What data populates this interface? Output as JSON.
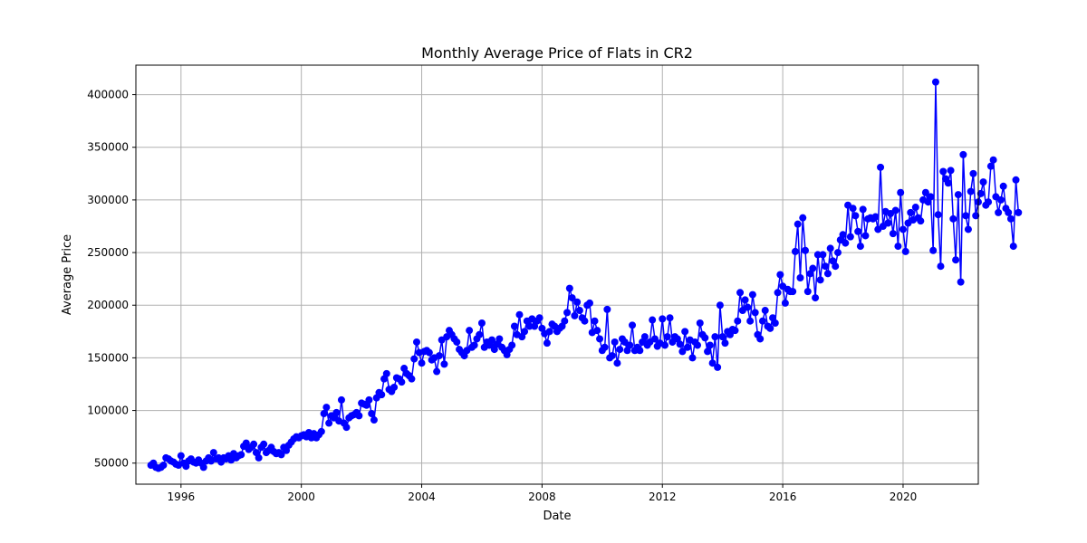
{
  "chart_data": {
    "type": "line",
    "title": "Monthly Average Price of Flats in CR2",
    "xlabel": "Date",
    "ylabel": "Average Price",
    "x_ticks": [
      "1996",
      "2000",
      "2004",
      "2008",
      "2012",
      "2016",
      "2020"
    ],
    "y_ticks": [
      "50000",
      "100000",
      "150000",
      "200000",
      "250000",
      "300000",
      "350000",
      "400000"
    ],
    "xlim": [
      "1994-07",
      "2022-07"
    ],
    "ylim": [
      30000,
      428000
    ],
    "grid": true,
    "series_color": "#0000ff",
    "marker": "circle",
    "series": [
      {
        "x_start": "1995-01",
        "x_step": "1 month",
        "values": [
          48000,
          50000,
          46000,
          45000,
          46000,
          48000,
          55000,
          54000,
          52000,
          51000,
          49000,
          48000,
          57000,
          50000,
          47000,
          52000,
          54000,
          51000,
          50000,
          53000,
          50000,
          46000,
          52000,
          55000,
          52000,
          60000,
          54000,
          55000,
          51000,
          55000,
          54000,
          57000,
          53000,
          59000,
          55000,
          57000,
          58000,
          66000,
          69000,
          63000,
          65000,
          68000,
          60000,
          55000,
          65000,
          68000,
          60000,
          62000,
          65000,
          61000,
          59000,
          60000,
          58000,
          65000,
          62000,
          67000,
          70000,
          73000,
          75000,
          74000,
          76000,
          77000,
          75000,
          79000,
          74000,
          78000,
          74000,
          77000,
          80000,
          97000,
          103000,
          88000,
          95000,
          93000,
          98000,
          90000,
          110000,
          88000,
          84000,
          93000,
          95000,
          96000,
          98000,
          95000,
          107000,
          106000,
          105000,
          110000,
          97000,
          91000,
          112000,
          117000,
          115000,
          130000,
          135000,
          120000,
          118000,
          122000,
          131000,
          130000,
          127000,
          140000,
          135000,
          133000,
          130000,
          149000,
          165000,
          155000,
          145000,
          156000,
          157000,
          155000,
          148000,
          150000,
          137000,
          152000,
          167000,
          144000,
          170000,
          176000,
          172000,
          168000,
          165000,
          158000,
          155000,
          152000,
          157000,
          176000,
          160000,
          162000,
          168000,
          172000,
          183000,
          160000,
          165000,
          162000,
          167000,
          158000,
          163000,
          168000,
          160000,
          157000,
          153000,
          158000,
          162000,
          180000,
          172000,
          191000,
          170000,
          175000,
          185000,
          180000,
          187000,
          180000,
          185000,
          188000,
          178000,
          173000,
          164000,
          175000,
          182000,
          180000,
          175000,
          178000,
          180000,
          185000,
          193000,
          216000,
          207000,
          190000,
          203000,
          195000,
          188000,
          185000,
          200000,
          202000,
          174000,
          185000,
          176000,
          168000,
          157000,
          160000,
          196000,
          150000,
          152000,
          165000,
          145000,
          158000,
          168000,
          165000,
          157000,
          162000,
          181000,
          157000,
          160000,
          157000,
          165000,
          170000,
          162000,
          165000,
          186000,
          168000,
          161000,
          164000,
          187000,
          162000,
          170000,
          188000,
          165000,
          170000,
          168000,
          163000,
          156000,
          175000,
          160000,
          167000,
          150000,
          165000,
          162000,
          183000,
          172000,
          169000,
          156000,
          162000,
          145000,
          170000,
          141000,
          200000,
          170000,
          164000,
          175000,
          172000,
          177000,
          176000,
          185000,
          212000,
          195000,
          205000,
          198000,
          185000,
          210000,
          193000,
          172000,
          168000,
          185000,
          195000,
          180000,
          178000,
          188000,
          183000,
          212000,
          229000,
          218000,
          202000,
          215000,
          213000,
          213000,
          251000,
          277000,
          226000,
          283000,
          252000,
          213000,
          230000,
          235000,
          207000,
          248000,
          224000,
          248000,
          237000,
          230000,
          254000,
          242000,
          237000,
          250000,
          262000,
          267000,
          259000,
          295000,
          265000,
          292000,
          285000,
          270000,
          256000,
          291000,
          266000,
          282000,
          283000,
          282000,
          284000,
          272000,
          331000,
          275000,
          289000,
          278000,
          287000,
          268000,
          290000,
          256000,
          307000,
          272000,
          251000,
          278000,
          288000,
          281000,
          293000,
          283000,
          280000,
          300000,
          307000,
          298000,
          303000,
          252000,
          412000,
          286000,
          237000,
          327000,
          320000,
          316000,
          328000,
          282000,
          243000,
          305000,
          222000,
          343000,
          285000,
          272000,
          308000,
          325000,
          285000,
          298000,
          306000,
          317000,
          295000,
          298000,
          332000,
          338000,
          303000,
          288000,
          300000,
          313000,
          292000,
          288000,
          282000,
          256000,
          319000,
          288000
        ]
      }
    ]
  }
}
